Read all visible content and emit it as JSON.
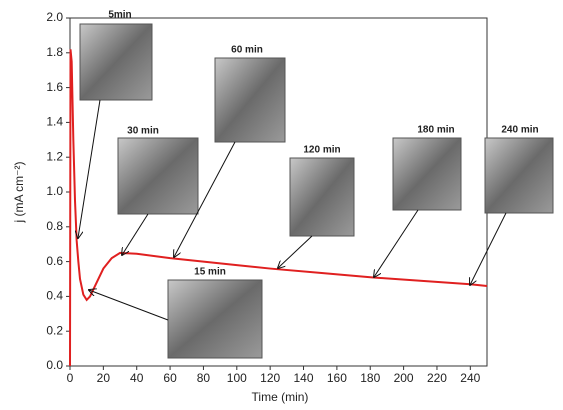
{
  "chart_data": {
    "type": "line",
    "x_label": "Time (min)",
    "y_label": "j (mA cm⁻²)",
    "xlim": [
      0,
      250
    ],
    "xticks": [
      0,
      20,
      40,
      60,
      80,
      100,
      120,
      140,
      160,
      180,
      200,
      220,
      240
    ],
    "ylim": [
      0,
      2.0
    ],
    "yticks": [
      {
        "value": 0,
        "label": "0.0"
      },
      {
        "value": 0.2,
        "label": "0.2"
      },
      {
        "value": 0.4,
        "label": "0.4"
      },
      {
        "value": 0.6,
        "label": "0.6"
      },
      {
        "value": 0.8,
        "label": "0.8"
      },
      {
        "value": 1.0,
        "label": "1.0"
      },
      {
        "value": 1.2,
        "label": "1.2"
      },
      {
        "value": 1.4,
        "label": "1.4"
      },
      {
        "value": 1.6,
        "label": "1.6"
      },
      {
        "value": 1.8,
        "label": "1.8"
      },
      {
        "value": 2.0,
        "label": "2.0"
      }
    ],
    "grid": false,
    "x": [
      0,
      0.3,
      1,
      2,
      3,
      4,
      5,
      6,
      8,
      10,
      12,
      15,
      20,
      25,
      30,
      40,
      60,
      80,
      100,
      120,
      150,
      180,
      210,
      240,
      250
    ],
    "series": [
      {
        "color": "#e02020",
        "values": [
          0,
          1.82,
          1.75,
          1.3,
          0.95,
          0.72,
          0.6,
          0.5,
          0.41,
          0.38,
          0.4,
          0.46,
          0.56,
          0.62,
          0.65,
          0.645,
          0.62,
          0.6,
          0.58,
          0.56,
          0.535,
          0.51,
          0.49,
          0.47,
          0.46
        ]
      }
    ],
    "annotations": [
      "5min",
      "30 min",
      "60 min",
      "120 min",
      "180 min",
      "240 min",
      "15 min"
    ]
  }
}
